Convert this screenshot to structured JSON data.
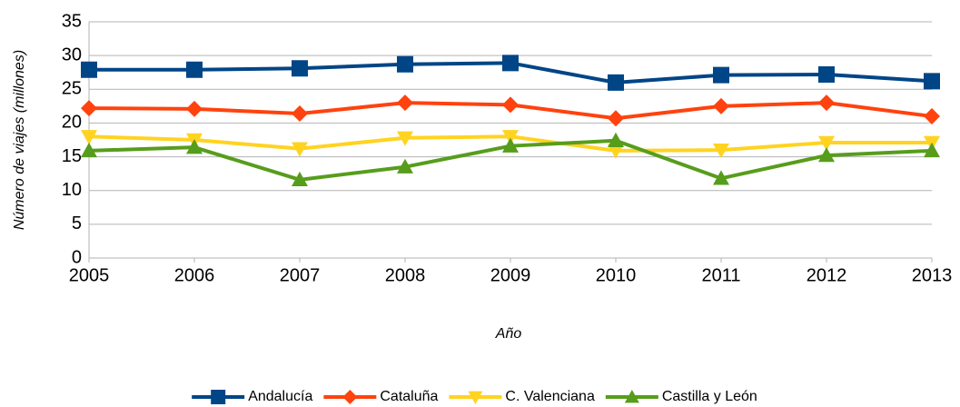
{
  "chart_data": {
    "type": "line",
    "x_label": "Año",
    "y_label": "Número de viajes (millones)",
    "x": [
      2005,
      2006,
      2007,
      2008,
      2009,
      2010,
      2011,
      2012,
      2013
    ],
    "xlim": [
      2005,
      2013
    ],
    "xticks": [
      2005,
      2006,
      2007,
      2008,
      2009,
      2010,
      2011,
      2012,
      2013
    ],
    "ylim": [
      0,
      35
    ],
    "yticks": [
      0,
      5,
      10,
      15,
      20,
      25,
      30,
      35
    ],
    "grid": true,
    "legend": "bottom",
    "series": [
      {
        "name": "Andalucía",
        "color": "#004586",
        "marker": "square",
        "values": [
          27.9,
          27.9,
          28.1,
          28.7,
          28.9,
          26.0,
          27.1,
          27.2,
          26.2
        ]
      },
      {
        "name": "Cataluña",
        "color": "#ff420e",
        "marker": "diamond",
        "values": [
          22.2,
          22.1,
          21.4,
          23.0,
          22.7,
          20.7,
          22.5,
          23.0,
          21.0
        ]
      },
      {
        "name": "C. Valenciana",
        "color": "#ffd320",
        "marker": "triangle-down",
        "values": [
          18.0,
          17.5,
          16.2,
          17.8,
          18.0,
          15.9,
          16.0,
          17.1,
          17.1
        ]
      },
      {
        "name": "Castilla y León",
        "color": "#579d1c",
        "marker": "triangle-up",
        "values": [
          15.9,
          16.4,
          11.6,
          13.5,
          16.6,
          17.4,
          11.8,
          15.2,
          15.9
        ]
      }
    ]
  }
}
